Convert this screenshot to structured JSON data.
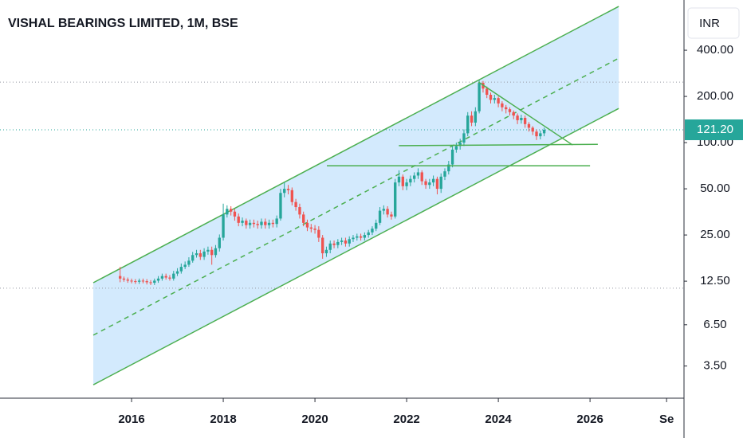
{
  "chart_data": {
    "type": "candlestick",
    "title": "VISHAL BEARINGS LIMITED, 1M, BSE",
    "currency": "INR",
    "log_scale": true,
    "up_color": "#26a69a",
    "down_color": "#ef5350",
    "xlim": [
      2013.13,
      2028.05
    ],
    "xticks": [
      2016,
      2018,
      2020,
      2022,
      2024,
      2026,
      {
        "value": 2027.67,
        "label": "Se"
      }
    ],
    "ylim": [
      2.16,
      850
    ],
    "yticks": [
      {
        "value": 400,
        "label": "400.00"
      },
      {
        "value": 200,
        "label": "200.00"
      },
      {
        "value": 100,
        "label": "100.00"
      },
      {
        "value": 50,
        "label": "50.00"
      },
      {
        "value": 25,
        "label": "25.00"
      },
      {
        "value": 12.5,
        "label": "12.50"
      },
      {
        "value": 6.5,
        "label": "6.50"
      },
      {
        "value": 3.5,
        "label": "3.50"
      }
    ],
    "last_price": {
      "value": 121.2,
      "label": "121.20",
      "color": "#26a69a"
    },
    "x": [
      2015.75,
      2015.833,
      2015.917,
      2016,
      2016.083,
      2016.167,
      2016.25,
      2016.333,
      2016.417,
      2016.5,
      2016.583,
      2016.667,
      2016.75,
      2016.833,
      2016.917,
      2017,
      2017.083,
      2017.167,
      2017.25,
      2017.333,
      2017.417,
      2017.5,
      2017.583,
      2017.667,
      2017.75,
      2017.833,
      2017.917,
      2018,
      2018.083,
      2018.167,
      2018.25,
      2018.333,
      2018.417,
      2018.5,
      2018.583,
      2018.667,
      2018.75,
      2018.833,
      2018.917,
      2019,
      2019.083,
      2019.167,
      2019.25,
      2019.333,
      2019.417,
      2019.5,
      2019.583,
      2019.667,
      2019.75,
      2019.833,
      2019.917,
      2020,
      2020.083,
      2020.167,
      2020.25,
      2020.333,
      2020.417,
      2020.5,
      2020.583,
      2020.667,
      2020.75,
      2020.833,
      2020.917,
      2021,
      2021.083,
      2021.167,
      2021.25,
      2021.333,
      2021.417,
      2021.5,
      2021.583,
      2021.667,
      2021.75,
      2021.833,
      2021.917,
      2022,
      2022.083,
      2022.167,
      2022.25,
      2022.333,
      2022.417,
      2022.5,
      2022.583,
      2022.667,
      2022.75,
      2022.833,
      2022.917,
      2023,
      2023.083,
      2023.167,
      2023.25,
      2023.333,
      2023.417,
      2023.5,
      2023.583,
      2023.667,
      2023.75,
      2023.833,
      2023.917,
      2024,
      2024.083,
      2024.167,
      2024.25,
      2024.333,
      2024.417,
      2024.5,
      2024.583,
      2024.667,
      2024.75,
      2024.833,
      2024.917,
      2025
    ],
    "open": [
      13.5,
      13.0,
      12.8,
      12.6,
      12.5,
      12.4,
      12.6,
      12.5,
      12.3,
      12.2,
      12.6,
      13.0,
      13.5,
      13.2,
      13.0,
      14.0,
      14.5,
      15.5,
      16.0,
      17.0,
      18.5,
      19.0,
      18.0,
      19.5,
      20.0,
      18.5,
      20.5,
      24.0,
      34.0,
      37.0,
      35.5,
      33.0,
      30.0,
      31.0,
      29.0,
      30.0,
      29.5,
      29.0,
      30.5,
      29.0,
      30.0,
      29.5,
      32.0,
      47.0,
      50.0,
      49.0,
      41.0,
      38.0,
      34.0,
      30.0,
      28.0,
      27.5,
      27.0,
      24.0,
      19.0,
      20.0,
      22.0,
      21.5,
      22.5,
      23.0,
      22.0,
      23.5,
      24.0,
      24.5,
      24.0,
      25.0,
      26.0,
      27.5,
      30.0,
      36.0,
      37.0,
      34.0,
      33.0,
      55.0,
      60.0,
      52.0,
      55.0,
      58.0,
      61.0,
      64.0,
      56.0,
      53.0,
      55.0,
      58.0,
      50.0,
      60.0,
      65.0,
      72.0,
      90.0,
      95.0,
      100.0,
      115.0,
      150.0,
      135.0,
      160.0,
      245.0,
      225.0,
      205.0,
      190.0,
      195.0,
      180.0,
      170.0,
      165.0,
      158.0,
      150.0,
      140.0,
      145.0,
      132.0,
      125.0,
      118.0,
      110.0,
      115.0
    ],
    "high": [
      15.5,
      13.4,
      13.2,
      13.0,
      12.9,
      13.0,
      13.0,
      12.9,
      12.7,
      13.0,
      13.5,
      14.0,
      14.0,
      13.7,
      14.6,
      15.2,
      16.3,
      16.8,
      17.9,
      19.4,
      20.0,
      20.0,
      20.5,
      21.0,
      21.0,
      21.5,
      25.2,
      40.0,
      39.0,
      38.5,
      37.0,
      34.5,
      32.5,
      32.0,
      31.5,
      31.5,
      31.0,
      32.0,
      32.0,
      31.5,
      31.5,
      33.5,
      50.0,
      55.0,
      53.0,
      51.0,
      43.0,
      40.0,
      35.5,
      31.5,
      29.5,
      29.0,
      28.5,
      25.0,
      21.0,
      23.0,
      23.0,
      23.5,
      24.0,
      24.0,
      24.5,
      25.0,
      25.5,
      25.5,
      26.0,
      27.0,
      28.5,
      31.5,
      38.0,
      39.0,
      38.5,
      35.5,
      58.0,
      66.0,
      62.0,
      58.0,
      61.0,
      64.0,
      68.0,
      66.0,
      58.0,
      58.0,
      61.0,
      60.0,
      63.0,
      68.0,
      76.0,
      95.0,
      100.0,
      106.0,
      122.0,
      158.0,
      160.0,
      170.0,
      255.0,
      252.0,
      232.0,
      212.0,
      205.0,
      200.0,
      186.0,
      176.0,
      170.0,
      162.0,
      155.0,
      152.0,
      150.0,
      136.0,
      128.0,
      122.0,
      120.0,
      125.0
    ],
    "low": [
      12.3,
      12.4,
      12.2,
      12.1,
      12.0,
      12.0,
      12.1,
      11.9,
      11.8,
      11.8,
      12.2,
      12.6,
      12.8,
      12.6,
      12.6,
      13.5,
      14.0,
      15.0,
      15.5,
      16.5,
      17.8,
      17.2,
      17.2,
      18.6,
      16.0,
      17.8,
      19.5,
      23.0,
      32.5,
      33.5,
      31.0,
      28.5,
      28.5,
      27.5,
      27.5,
      28.0,
      27.5,
      27.5,
      27.5,
      27.5,
      28.0,
      28.0,
      31.0,
      44.0,
      46.0,
      39.0,
      36.0,
      32.0,
      28.5,
      26.5,
      26.0,
      25.5,
      22.5,
      17.5,
      18.0,
      19.0,
      20.5,
      20.5,
      21.5,
      21.0,
      21.0,
      22.5,
      23.0,
      23.0,
      23.0,
      24.0,
      25.0,
      26.5,
      29.0,
      34.0,
      32.5,
      31.5,
      32.0,
      52.0,
      49.0,
      49.0,
      52.0,
      55.0,
      58.0,
      53.0,
      50.0,
      50.0,
      52.0,
      46.0,
      47.0,
      57.0,
      62.0,
      69.0,
      86.0,
      90.0,
      95.0,
      110.0,
      128.0,
      128.0,
      155.0,
      212.0,
      195.0,
      180.0,
      180.0,
      170.0,
      160.0,
      155.0,
      150.0,
      142.0,
      132.0,
      133.0,
      125.0,
      118.0,
      112.0,
      104.0,
      105.0,
      110.0
    ],
    "close": [
      13.0,
      12.8,
      12.6,
      12.5,
      12.4,
      12.6,
      12.5,
      12.3,
      12.2,
      12.6,
      13.0,
      13.5,
      13.2,
      13.0,
      14.0,
      14.5,
      15.5,
      16.0,
      17.0,
      18.5,
      19.0,
      18.0,
      19.5,
      20.0,
      18.5,
      20.5,
      24.0,
      34.0,
      37.0,
      35.5,
      33.0,
      30.0,
      31.0,
      29.0,
      30.0,
      29.5,
      29.0,
      30.5,
      29.0,
      30.0,
      29.5,
      32.0,
      47.0,
      50.0,
      49.0,
      41.0,
      38.0,
      34.0,
      30.0,
      28.0,
      27.5,
      27.0,
      24.0,
      19.0,
      20.0,
      22.0,
      21.5,
      22.5,
      23.0,
      22.0,
      23.5,
      24.0,
      24.5,
      24.0,
      25.0,
      26.0,
      27.5,
      30.0,
      36.0,
      37.0,
      34.0,
      33.0,
      55.0,
      60.0,
      52.0,
      55.0,
      58.0,
      61.0,
      64.0,
      56.0,
      53.0,
      55.0,
      58.0,
      50.0,
      60.0,
      65.0,
      72.0,
      90.0,
      95.0,
      100.0,
      115.0,
      150.0,
      135.0,
      160.0,
      245.0,
      225.0,
      205.0,
      190.0,
      195.0,
      180.0,
      170.0,
      165.0,
      158.0,
      150.0,
      140.0,
      145.0,
      132.0,
      125.0,
      118.0,
      110.0,
      115.0,
      121.2
    ],
    "channel": {
      "color": "#4caf50",
      "fill": "#2196f3",
      "upper": [
        [
          2015.165,
          12.22
        ],
        [
          2026.626,
          772
        ]
      ],
      "middle": [
        [
          2015.165,
          5.56
        ],
        [
          2026.626,
          355
        ]
      ],
      "lower": [
        [
          2015.165,
          2.64
        ],
        [
          2026.626,
          167
        ]
      ]
    },
    "trend_lines": [
      {
        "color": "#4caf50",
        "points": [
          [
            2021.83,
            95.5
          ],
          [
            2026.17,
            97.5
          ]
        ]
      },
      {
        "color": "#4caf50",
        "points": [
          [
            2020.26,
            70.7
          ],
          [
            2026.0,
            70.7
          ]
        ]
      },
      {
        "color": "#4caf50",
        "points": [
          [
            2023.57,
            248
          ],
          [
            2025.62,
            96.5
          ]
        ]
      }
    ],
    "horizontal_lines": [
      {
        "value": 248,
        "color": "#9598a1"
      },
      {
        "value": 11.25,
        "color": "#9598a1"
      }
    ]
  }
}
